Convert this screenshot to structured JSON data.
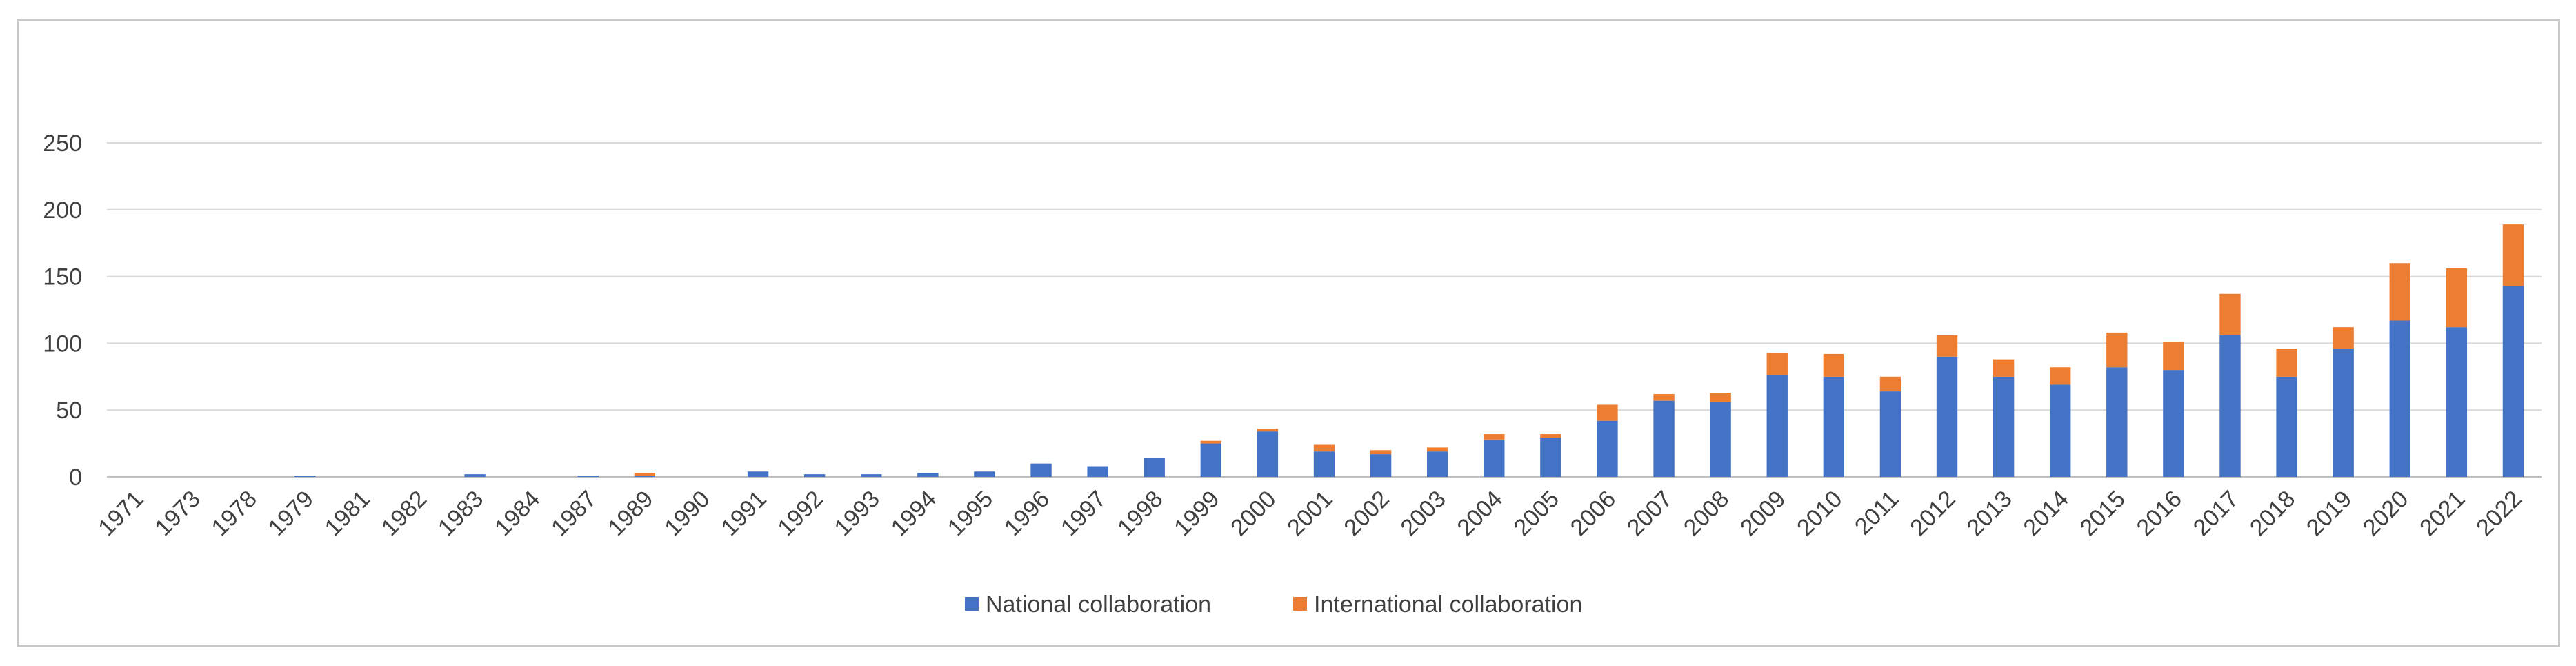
{
  "chart_data": {
    "type": "bar",
    "stacked": true,
    "title": "",
    "xlabel": "",
    "ylabel": "",
    "ylim": [
      0,
      250
    ],
    "yticks": [
      0,
      50,
      100,
      150,
      200,
      250
    ],
    "grid": true,
    "legend_position": "bottom",
    "categories": [
      "1971",
      "1973",
      "1978",
      "1979",
      "1981",
      "1982",
      "1983",
      "1984",
      "1987",
      "1989",
      "1990",
      "1991",
      "1992",
      "1993",
      "1994",
      "1995",
      "1996",
      "1997",
      "1998",
      "1999",
      "2000",
      "2001",
      "2002",
      "2003",
      "2004",
      "2005",
      "2006",
      "2007",
      "2008",
      "2009",
      "2010",
      "2011",
      "2012",
      "2013",
      "2014",
      "2015",
      "2016",
      "2017",
      "2018",
      "2019",
      "2020",
      "2021",
      "2022"
    ],
    "series": [
      {
        "name": "National collaboration",
        "color": "#4472C4",
        "values": [
          0,
          0,
          0,
          1,
          0,
          0,
          2,
          0,
          1,
          1,
          0,
          4,
          2,
          2,
          3,
          4,
          10,
          8,
          14,
          25,
          34,
          19,
          17,
          19,
          28,
          29,
          42,
          57,
          56,
          76,
          75,
          64,
          90,
          75,
          69,
          82,
          80,
          106,
          75,
          96,
          117,
          112,
          143
        ]
      },
      {
        "name": "International collaboration",
        "color": "#ED7D31",
        "values": [
          0,
          0,
          0,
          0,
          0,
          0,
          0,
          0,
          0,
          2,
          0,
          0,
          0,
          0,
          0,
          0,
          0,
          0,
          0,
          2,
          2,
          5,
          3,
          3,
          4,
          3,
          12,
          5,
          7,
          17,
          17,
          11,
          16,
          13,
          13,
          26,
          21,
          31,
          21,
          16,
          43,
          44,
          46
        ]
      }
    ]
  }
}
